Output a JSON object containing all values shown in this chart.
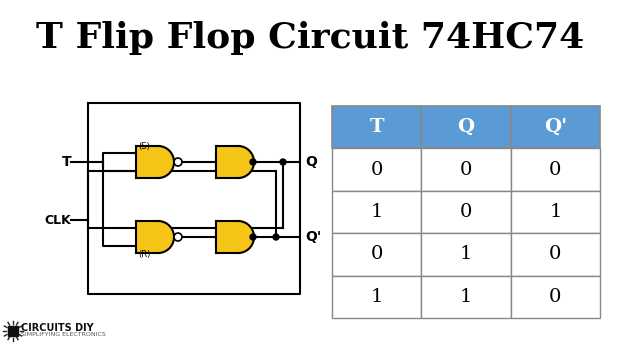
{
  "title": "T Flip Flop Circuit 74HC74",
  "title_fontsize": 26,
  "title_fontweight": "bold",
  "bg_color": "#ffffff",
  "table_headers": [
    "T",
    "Q",
    "Q'"
  ],
  "table_rows": [
    [
      "0",
      "0",
      "0"
    ],
    [
      "1",
      "0",
      "1"
    ],
    [
      "0",
      "1",
      "0"
    ],
    [
      "1",
      "1",
      "0"
    ]
  ],
  "table_header_bg": "#5b9bd5",
  "table_header_color": "#ffffff",
  "table_cell_bg": "#ffffff",
  "table_cell_color": "#000000",
  "table_border_color": "#888888",
  "gate_fill": "#f5c518",
  "gate_edge": "#000000",
  "wire_color": "#000000",
  "label_color": "#000000",
  "logo_text": "CIRCUITS DIY",
  "logo_subtext": "SIMPLIFYING ELECTRONICS"
}
